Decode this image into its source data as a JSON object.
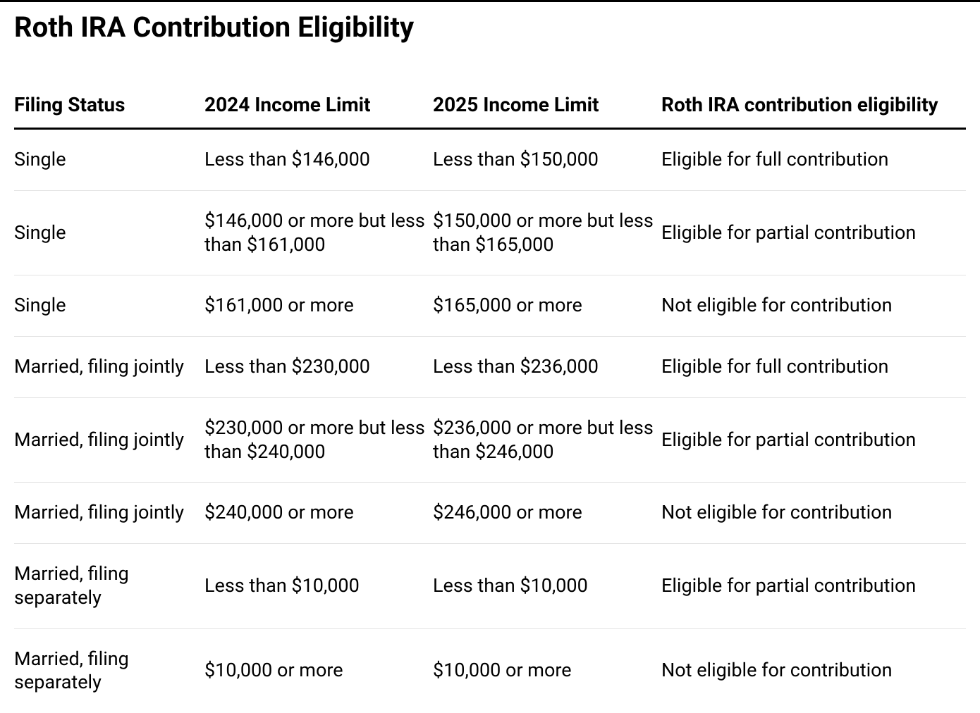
{
  "table": {
    "title": "Roth IRA Contribution Eligibility",
    "columns": [
      "Filing Status",
      "2024 Income Limit",
      "2025 Income Limit",
      "Roth IRA contribution eligibility"
    ],
    "rows": [
      [
        "Single",
        "Less than $146,000",
        "Less than $150,000",
        "Eligible for full contribution"
      ],
      [
        "Single",
        "$146,000 or more but less than $161,000",
        "$150,000 or more but less than $165,000",
        "Eligible for partial contribution"
      ],
      [
        "Single",
        "$161,000 or more",
        "$165,000 or more",
        "Not eligible for contribution"
      ],
      [
        "Married, filing jointly",
        "Less than $230,000",
        "Less than $236,000",
        "Eligible for full contribution"
      ],
      [
        "Married, filing jointly",
        "$230,000 or more but less than $240,000",
        "$236,000 or more but less than $246,000",
        "Eligible for partial contribution"
      ],
      [
        "Married, filing jointly",
        "$240,000 or more",
        "$246,000 or more",
        "Not eligible for contribution"
      ],
      [
        "Married, filing separately",
        "Less than $10,000",
        "Less than $10,000",
        "Eligible for partial contribution"
      ],
      [
        "Married, filing separately",
        "$10,000 or more",
        "$10,000 or more",
        "Not eligible for contribution"
      ]
    ],
    "style": {
      "title_fontsize": 40,
      "header_fontsize": 28,
      "body_fontsize": 27,
      "title_fontweight": 700,
      "header_fontweight": 700,
      "body_fontweight": 400,
      "text_color": "#000000",
      "background_color": "#ffffff",
      "top_border_color": "#000000",
      "top_border_width": 3,
      "header_border_color": "#000000",
      "header_border_width": 3,
      "row_border_color": "#e3e3e3",
      "row_border_width": 1,
      "column_widths_pct": [
        20,
        24,
        24,
        32
      ],
      "row_padding_v": 26
    }
  }
}
